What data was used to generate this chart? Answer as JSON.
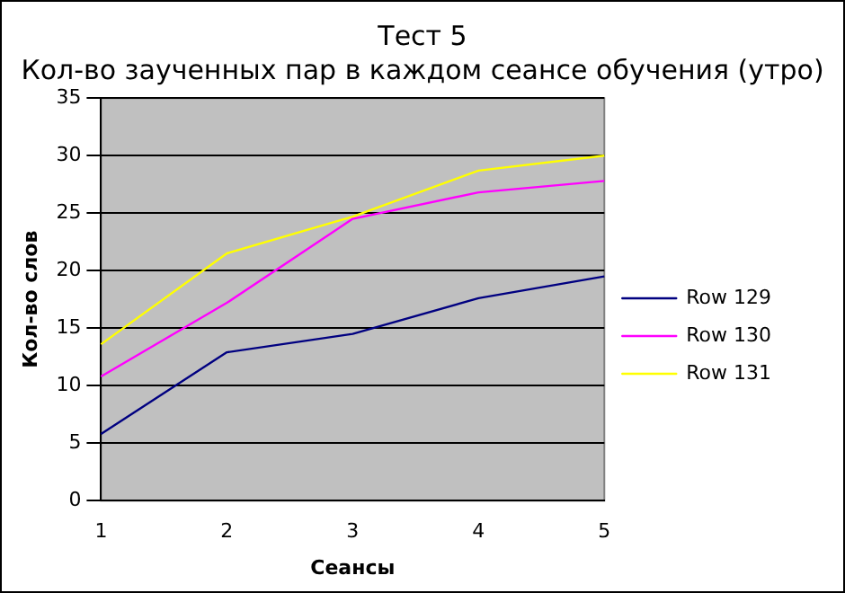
{
  "chart_data": {
    "type": "line",
    "title": "Тест 5",
    "subtitle": "Кол-во заученных пар в каждом сеансе обучения (утро)",
    "xlabel": "Сеансы",
    "ylabel": "Кол-во слов",
    "categories": [
      "1",
      "2",
      "3",
      "4",
      "5"
    ],
    "series": [
      {
        "name": "Row 129",
        "color": "#000080",
        "values": [
          5.8,
          12.9,
          14.5,
          17.6,
          19.5
        ]
      },
      {
        "name": "Row 130",
        "color": "#ff00ff",
        "values": [
          10.8,
          17.2,
          24.5,
          26.8,
          27.8
        ]
      },
      {
        "name": "Row 131",
        "color": "#ffff00",
        "values": [
          13.6,
          21.5,
          24.7,
          28.7,
          30
        ]
      }
    ],
    "ylim": [
      0,
      35
    ],
    "yticks": [
      0,
      5,
      10,
      15,
      20,
      25,
      30,
      35
    ],
    "grid": "y",
    "legend": "right",
    "marker": "none"
  }
}
